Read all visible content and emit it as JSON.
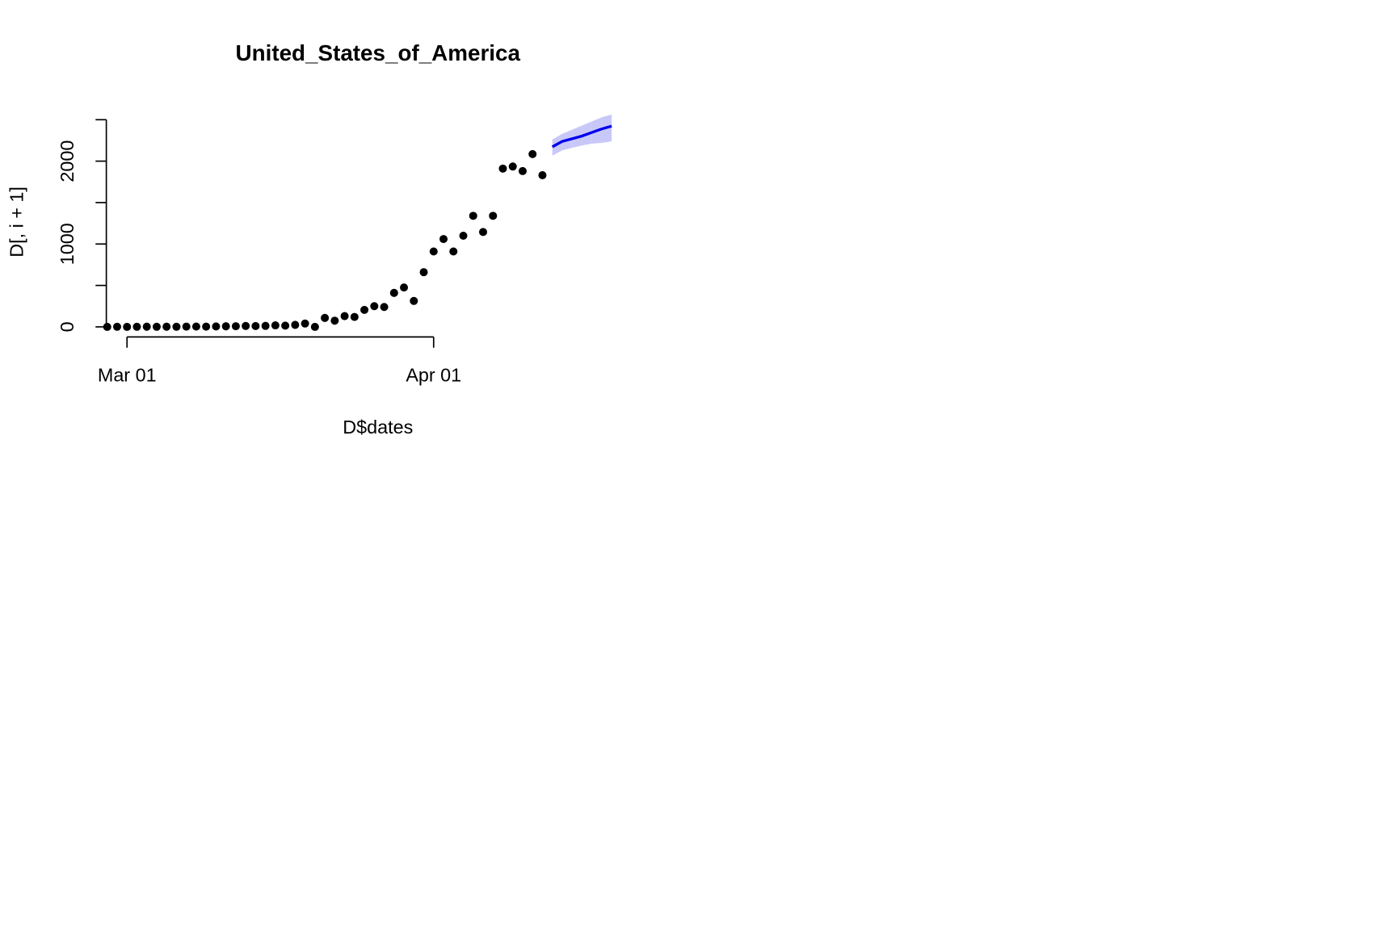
{
  "chart_data": {
    "type": "scatter",
    "title": "United_States_of_America",
    "x_label": "D$dates",
    "y_label": "D[, i + 1]",
    "x": [
      "02-28",
      "02-29",
      "03-01",
      "03-02",
      "03-03",
      "03-04",
      "03-05",
      "03-06",
      "03-07",
      "03-08",
      "03-09",
      "03-10",
      "03-11",
      "03-12",
      "03-13",
      "03-14",
      "03-15",
      "03-16",
      "03-17",
      "03-18",
      "03-19",
      "03-20",
      "03-21",
      "03-22",
      "03-23",
      "03-24",
      "03-25",
      "03-26",
      "03-27",
      "03-28",
      "03-29",
      "03-30",
      "03-31",
      "04-01",
      "04-02",
      "04-03",
      "04-04",
      "04-05",
      "04-06",
      "04-07",
      "04-08",
      "04-09",
      "04-10",
      "04-11",
      "04-12"
    ],
    "values": [
      0,
      1,
      0,
      1,
      2,
      1,
      2,
      1,
      3,
      4,
      3,
      5,
      7,
      8,
      11,
      10,
      12,
      18,
      15,
      24,
      40,
      0,
      108,
      75,
      130,
      120,
      205,
      250,
      240,
      410,
      475,
      313,
      660,
      910,
      1060,
      910,
      1100,
      1340,
      1145,
      1340,
      1910,
      1935,
      1880,
      2085,
      1830
    ],
    "color": "#000000",
    "forecast": {
      "x": [
        "04-13",
        "04-14",
        "04-15",
        "04-16",
        "04-17",
        "04-18",
        "04-19"
      ],
      "values": [
        2173,
        2238,
        2270,
        2303,
        2346,
        2389,
        2422
      ],
      "lower": [
        2065,
        2130,
        2160,
        2190,
        2210,
        2220,
        2238
      ],
      "upper": [
        2260,
        2330,
        2380,
        2430,
        2480,
        2530,
        2562
      ],
      "color": "#0000ee",
      "band_color": "#c8c8f8"
    },
    "xlim": [
      "02-28",
      "04-19"
    ],
    "xticks": [
      {
        "value": "03-01",
        "label": "Mar 01"
      },
      {
        "value": "04-01",
        "label": "Apr 01"
      }
    ],
    "ylim": [
      -100,
      2600
    ],
    "yticks": [
      0,
      1000,
      2000
    ],
    "yminor_ticks": [
      500,
      1500,
      2500
    ]
  }
}
